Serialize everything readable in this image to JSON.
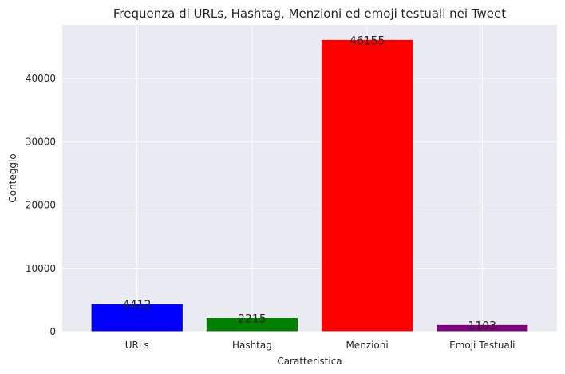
{
  "chart_data": {
    "type": "bar",
    "title": "Frequenza di URLs, Hashtag, Menzioni ed emoji testuali nei Tweet",
    "xlabel": "Caratteristica",
    "ylabel": "Conteggio",
    "categories": [
      "URLs",
      "Hashtag",
      "Menzioni",
      "Emoji Testuali"
    ],
    "values": [
      4412,
      2215,
      46155,
      1103
    ],
    "colors": [
      "#0000ff",
      "#008000",
      "#ff0000",
      "#800080"
    ],
    "yticks": [
      0,
      10000,
      20000,
      30000,
      40000
    ],
    "ylim": [
      0,
      48463
    ],
    "grid": true,
    "background": "#eaeaf2"
  }
}
